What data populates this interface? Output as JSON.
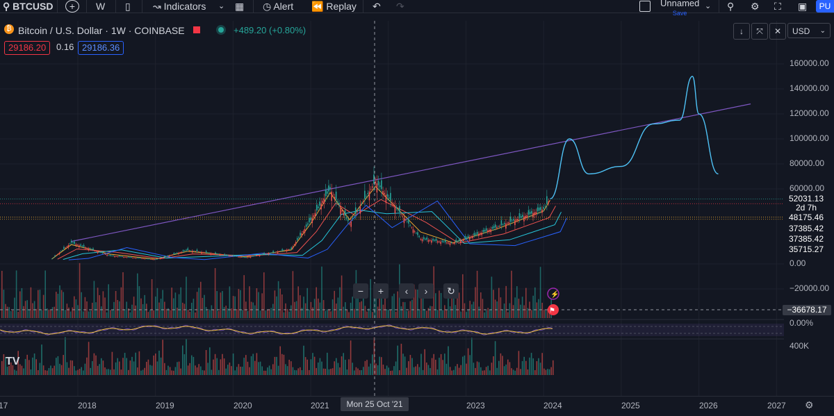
{
  "toolbar": {
    "symbol": "BTCUSD",
    "interval": "W",
    "indicators_label": "Indicators",
    "alert_label": "Alert",
    "replay_label": "Replay",
    "layout_name": "Unnamed",
    "layout_status": "Save",
    "publish_label": "PU"
  },
  "legend": {
    "title": "Bitcoin / U.S. Dollar · 1W · COINBASE",
    "change": "+489.20 (+0.80%)",
    "bid": "29186.20",
    "spread": "0.16",
    "ask": "29186.36"
  },
  "currency": "USD",
  "price_axis": {
    "ticks": [
      "160000.00",
      "140000.00",
      "120000.00",
      "100000.00",
      "80000.00",
      "60000.00",
      "0.00",
      "−20000.00"
    ],
    "badges": [
      {
        "text": "52031.13",
        "color": "#26a69a"
      },
      {
        "text": "2d 7h",
        "color": "#26a69a"
      },
      {
        "text": "48175.46",
        "color": "#f23645"
      },
      {
        "text": "37385.42",
        "color": "#66bb6a"
      },
      {
        "text": "37385.42",
        "color": "#66bb6a"
      },
      {
        "text": "35715.27",
        "color": "#f23645"
      }
    ],
    "crosshair_value": "−36678.17",
    "osc_value": "0.00%",
    "vol_value": "400K"
  },
  "time_axis": {
    "labels": [
      "17",
      "2018",
      "2019",
      "2020",
      "2021",
      "2022",
      "2023",
      "2024",
      "2025",
      "2026",
      "2027"
    ],
    "crosshair_label": "Mon 25 Oct '21"
  },
  "chart_data": {
    "type": "line",
    "title": "Bitcoin / U.S. Dollar · 1W · COINBASE",
    "xlabel": "",
    "ylabel": "",
    "ylim": [
      -20000,
      160000
    ],
    "series": [
      {
        "x": [
          "2017-09",
          "2017-12",
          "2018-06",
          "2019-01",
          "2019-06",
          "2020-03",
          "2020-10",
          "2021-01",
          "2021-04",
          "2021-07",
          "2021-11",
          "2022-06",
          "2022-11",
          "2023-06",
          "2024-01",
          "2024-02"
        ],
        "values": [
          4000,
          17000,
          6500,
          3500,
          11000,
          5000,
          12000,
          35000,
          60000,
          32000,
          66000,
          20000,
          16500,
          30000,
          44000,
          52031
        ]
      },
      {
        "x": [
          "2024-02",
          "2024-05",
          "2024-08",
          "2025-01",
          "2025-06",
          "2025-10",
          "2025-12",
          "2026-01",
          "2026-04"
        ],
        "values": [
          52031,
          100000,
          72000,
          78000,
          112000,
          115000,
          150000,
          120000,
          72000
        ]
      },
      {
        "x": [
          "2017-12",
          "2026-09"
        ],
        "values": [
          18000,
          128000
        ]
      }
    ],
    "legend": "none",
    "grid": true
  }
}
